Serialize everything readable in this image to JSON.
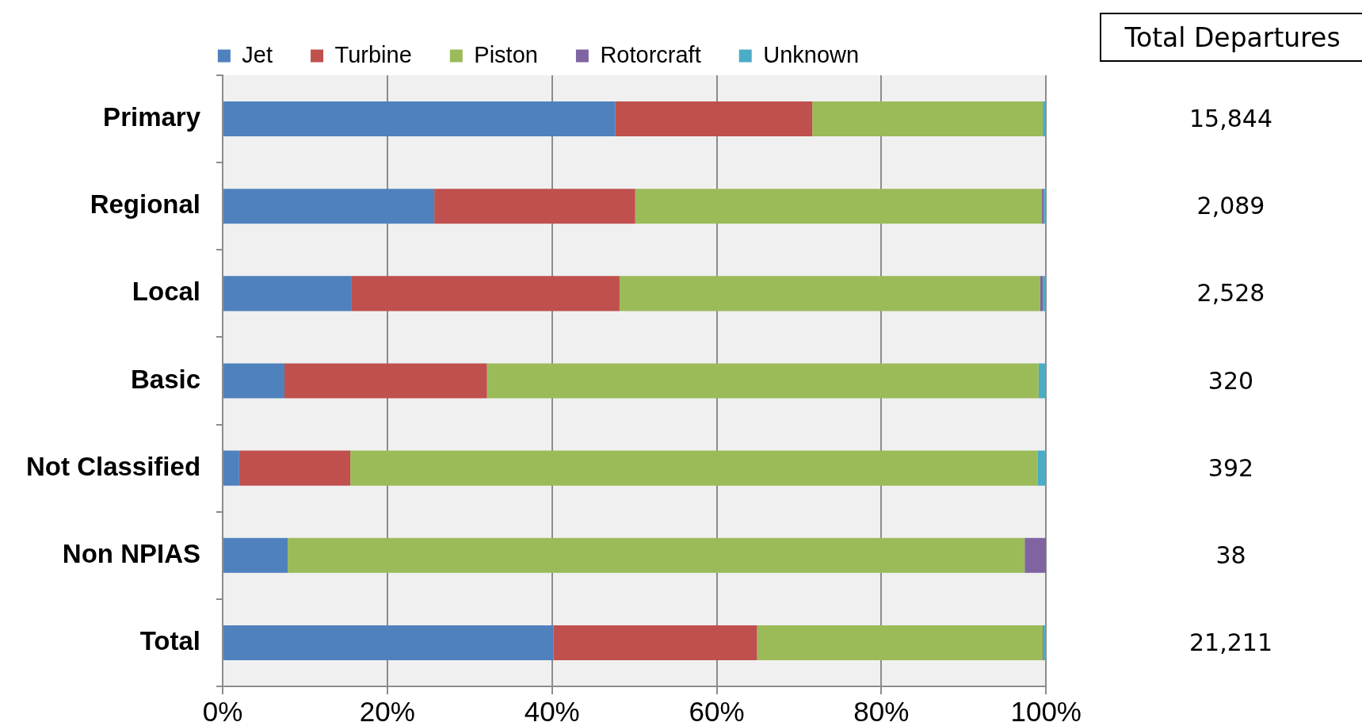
{
  "chart_data": [
    {
      "type": "bar",
      "orientation": "horizontal",
      "stacked": true,
      "categories": [
        "Primary",
        "Regional",
        "Local",
        "Basic",
        "Not Classified",
        "Non NPIAS",
        "Total"
      ],
      "series": [
        {
          "name": "Jet",
          "color": "#4f81bd",
          "values": [
            47.7,
            25.7,
            15.6,
            7.5,
            2.0,
            7.9,
            40.2
          ]
        },
        {
          "name": "Turbine",
          "color": "#c0504d",
          "values": [
            23.9,
            24.4,
            32.6,
            24.6,
            13.5,
            0,
            24.7
          ]
        },
        {
          "name": "Piston",
          "color": "#9bbb59",
          "values": [
            28.0,
            49.4,
            51.1,
            67.0,
            83.5,
            89.5,
            34.7
          ]
        },
        {
          "name": "Rotorcraft",
          "color": "#8064a2",
          "values": [
            0,
            0.2,
            0.3,
            0,
            0,
            2.6,
            0.1
          ]
        },
        {
          "name": "Unknown",
          "color": "#4bacc6",
          "values": [
            0.4,
            0.3,
            0.4,
            0.9,
            1.0,
            0,
            0.3
          ]
        }
      ],
      "xlim": [
        0,
        100
      ],
      "xticks": [
        {
          "value": 0,
          "label": "0%"
        },
        {
          "value": 20,
          "label": "20%"
        },
        {
          "value": 40,
          "label": "40%"
        },
        {
          "value": 60,
          "label": "60%"
        },
        {
          "value": 80,
          "label": "80%"
        },
        {
          "value": 100,
          "label": "100%"
        }
      ],
      "grid": "x",
      "legend": "top"
    },
    {
      "type": "other",
      "title": "Total Departures",
      "annotations": [
        "15,844",
        "2,089",
        "2,528",
        "320",
        "392",
        "38",
        "21,211"
      ]
    }
  ]
}
